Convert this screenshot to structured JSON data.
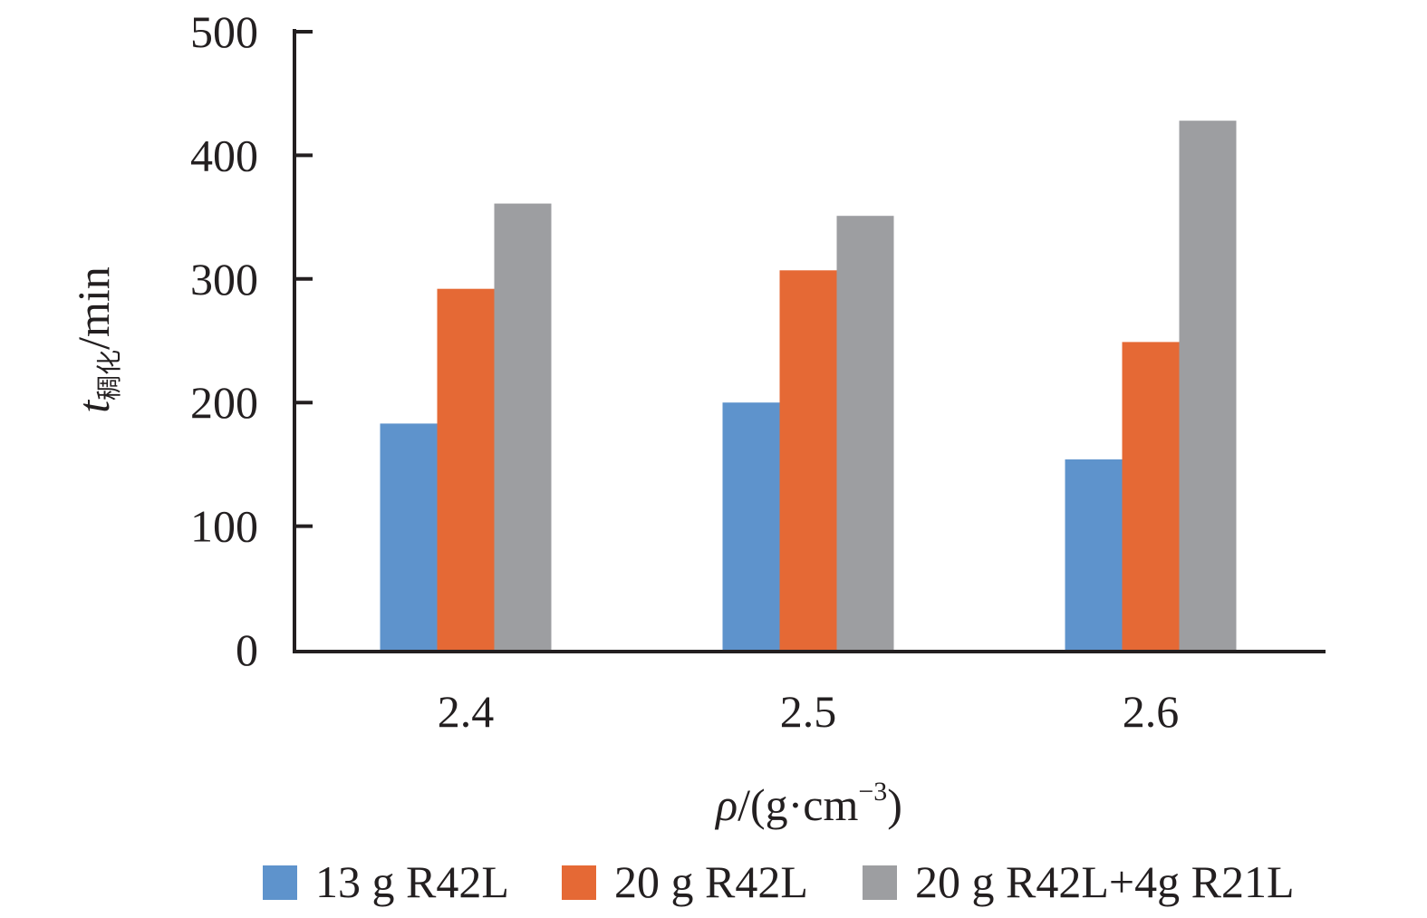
{
  "chart_data": {
    "type": "bar",
    "categories": [
      "2.4",
      "2.5",
      "2.6"
    ],
    "series": [
      {
        "name": "13 g R42L",
        "color": "#5e93cc",
        "values": [
          183,
          200,
          154
        ]
      },
      {
        "name": "20 g R42L",
        "color": "#e56935",
        "values": [
          292,
          307,
          249
        ]
      },
      {
        "name": "20 g R42L+4g R21L",
        "color": "#9d9ea1",
        "values": [
          361,
          351,
          428
        ]
      }
    ],
    "yticks": [
      "0",
      "100",
      "200",
      "300",
      "400",
      "500"
    ],
    "ylim": [
      0,
      500
    ],
    "xlabel": {
      "var": "ρ",
      "unit": "/(g·cm",
      "exp": "−3",
      "close": ")"
    },
    "ylabel": {
      "var": "t",
      "sub": "稠化",
      "unit": "/min"
    },
    "grid": false,
    "legend_position": "bottom"
  }
}
